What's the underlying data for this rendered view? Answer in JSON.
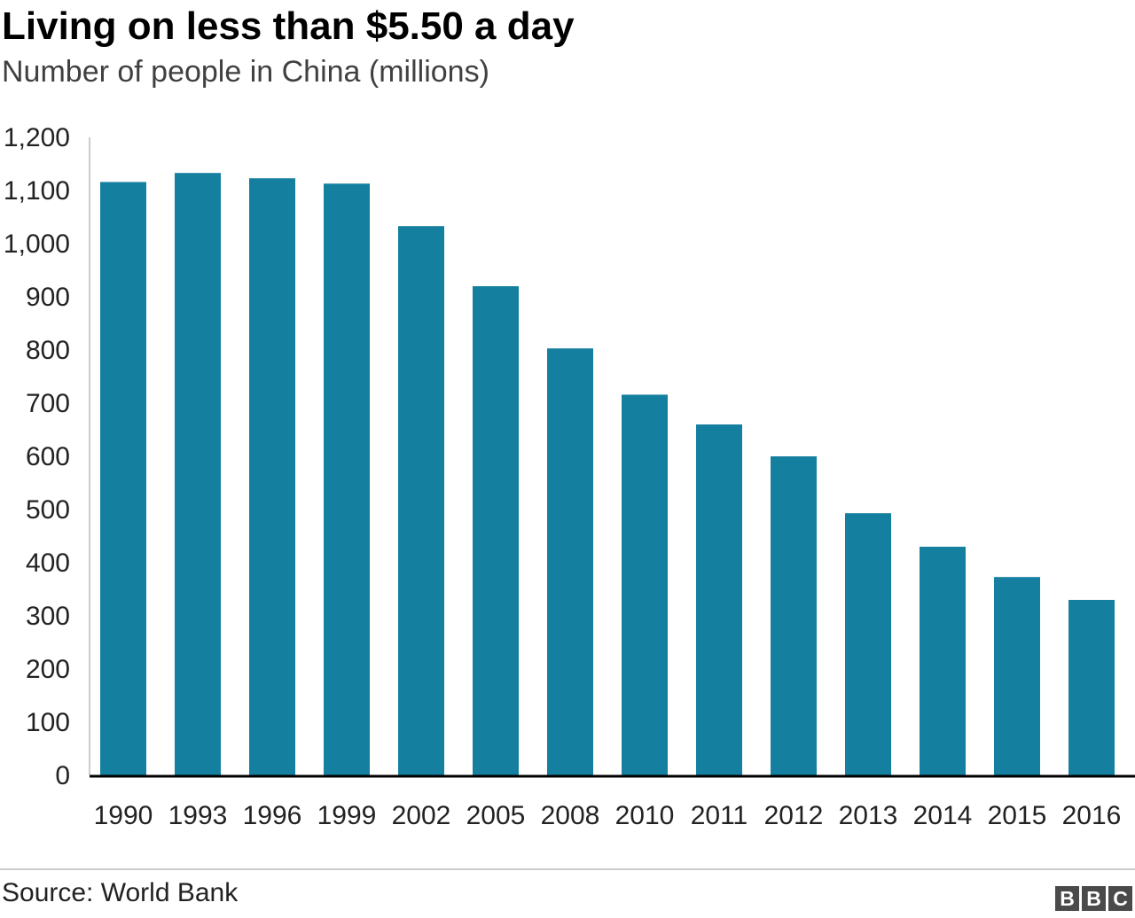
{
  "title": "Living on less than $5.50 a day",
  "subtitle": "Number of people in China (millions)",
  "source": "Source: World Bank",
  "logo": [
    "B",
    "B",
    "C"
  ],
  "colors": {
    "bar": "#157fa0",
    "axis": "#000000",
    "gridline": "#cccccc",
    "text": "#222222"
  },
  "chart_data": {
    "type": "bar",
    "title": "Living on less than $5.50 a day",
    "subtitle": "Number of people in China (millions)",
    "xlabel": "",
    "ylabel": "",
    "categories": [
      "1990",
      "1993",
      "1996",
      "1999",
      "2002",
      "2005",
      "2008",
      "2010",
      "2011",
      "2012",
      "2013",
      "2014",
      "2015",
      "2016"
    ],
    "values": [
      1116,
      1133,
      1123,
      1113,
      1033,
      920,
      803,
      716,
      660,
      600,
      493,
      430,
      373,
      330
    ],
    "ylim": [
      0,
      1200
    ],
    "yticks": [
      0,
      100,
      200,
      300,
      400,
      500,
      600,
      700,
      800,
      900,
      1000,
      1100,
      1200
    ],
    "ytick_labels": [
      "0",
      "100",
      "200",
      "300",
      "400",
      "500",
      "600",
      "700",
      "800",
      "900",
      "1,000",
      "1,100",
      "1,200"
    ],
    "grid": false,
    "legend": "none"
  }
}
